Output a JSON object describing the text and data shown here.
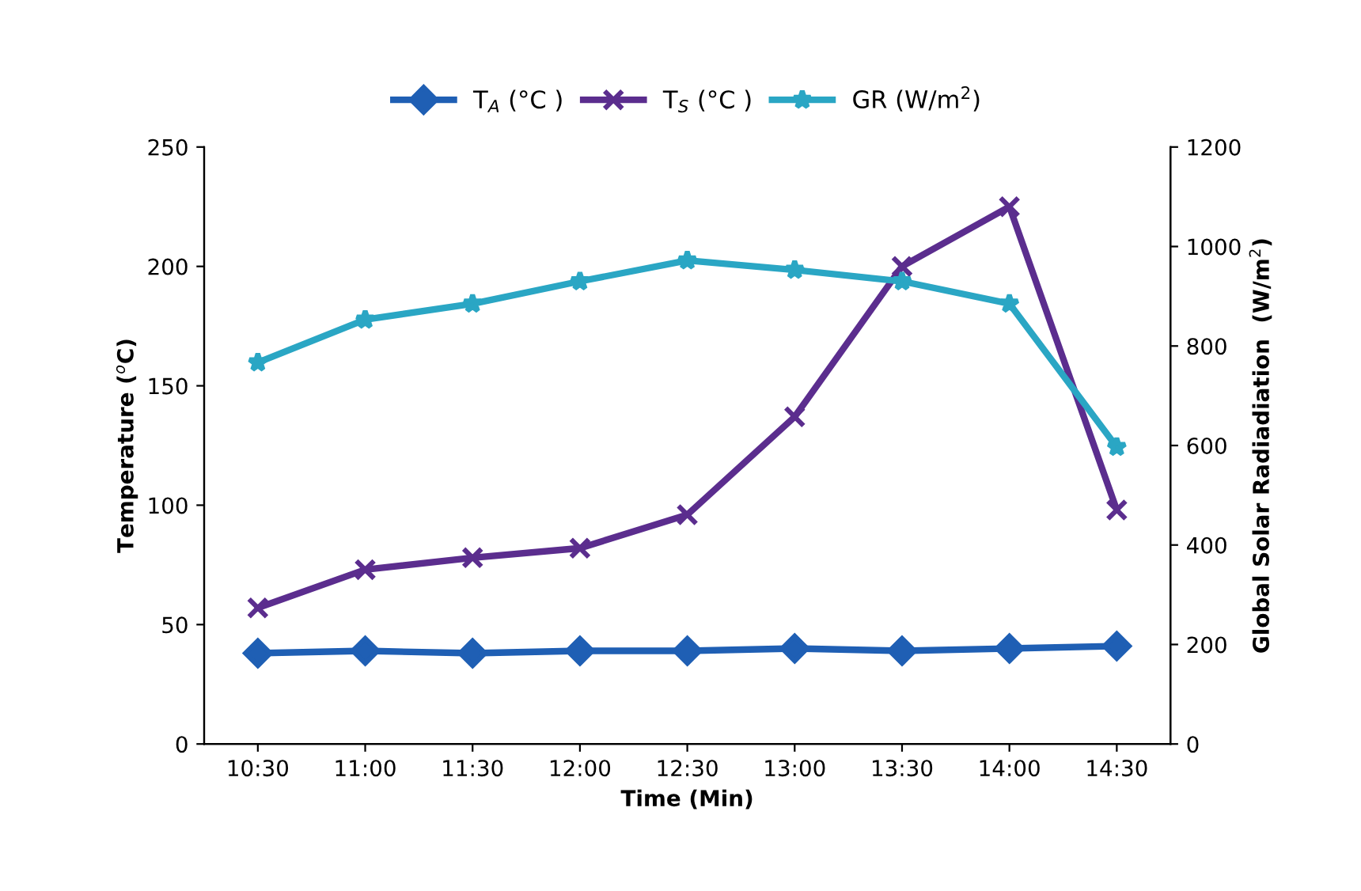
{
  "chart_data": {
    "type": "line",
    "xlabel": "Time (Min)",
    "ylabel": "Temperature ($^{o}$C)",
    "y2label": "Global Solar Radiadiation  (W/m$^{2}$)",
    "categories": [
      "10:30",
      "11:00",
      "11:30",
      "12:00",
      "12:30",
      "13:00",
      "13:30",
      "14:00",
      "14:30"
    ],
    "series": [
      {
        "name": "T$_{A}$ (°C )",
        "color": "#1f5fb4",
        "marker": "diamond",
        "values": [
          38,
          39,
          38,
          39,
          39,
          40,
          39,
          40,
          41
        ]
      },
      {
        "name": "T$_{S}$ (°C )",
        "color": "#5b2d8e",
        "marker": "cross",
        "values": [
          57,
          73,
          78,
          82,
          96,
          137,
          200,
          225,
          98
        ]
      },
      {
        "name": "GR (W/m$^{2}$)",
        "color": "#2aa6c4",
        "marker": "star",
        "axis": "y2",
        "values": [
          767,
          853,
          885,
          930,
          972,
          953,
          930,
          885,
          597
        ]
      }
    ],
    "ylim": [
      0,
      250
    ],
    "yticks": [
      0,
      50,
      100,
      150,
      200,
      250
    ],
    "y2lim": [
      0,
      1200
    ],
    "y2ticks": [
      0,
      200,
      400,
      600,
      800,
      1000,
      1200
    ],
    "grid": false,
    "legend": "top",
    "line_style": "solid"
  }
}
